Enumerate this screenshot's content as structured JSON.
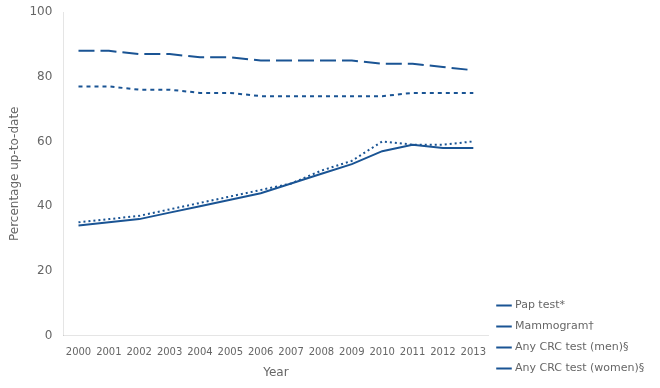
{
  "chart_data": {
    "type": "line",
    "x": [
      2000,
      2001,
      2002,
      2003,
      2004,
      2005,
      2006,
      2007,
      2008,
      2009,
      2010,
      2011,
      2012,
      2013
    ],
    "series": [
      {
        "name": "Pap test*",
        "color": "#1a5494",
        "line_style": "dashed",
        "values": [
          88,
          88,
          87,
          87,
          86,
          86,
          85,
          85,
          85,
          85,
          84,
          84,
          83,
          82
        ]
      },
      {
        "name": "Mammogram†",
        "color": "#1a5494",
        "line_style": "short-dashed",
        "values": [
          77,
          77,
          76,
          76,
          75,
          75,
          74,
          74,
          74,
          74,
          74,
          75,
          75,
          75
        ]
      },
      {
        "name": "Any CRC test (men)§",
        "color": "#1a5494",
        "line_style": "solid",
        "values": [
          34,
          35,
          36,
          38,
          40,
          42,
          44,
          47,
          50,
          53,
          57,
          59,
          58,
          58
        ]
      },
      {
        "name": "Any CRC test (women)§",
        "color": "#1a5494",
        "line_style": "dotted",
        "values": [
          35,
          36,
          37,
          39,
          41,
          43,
          45,
          47,
          51,
          54,
          60,
          59,
          59,
          60
        ]
      }
    ],
    "xlabel": "Year",
    "ylabel": "Percentage up-to-date",
    "xlim": [
      1999.5,
      2013.5
    ],
    "xticks": [
      2000,
      2001,
      2002,
      2003,
      2004,
      2005,
      2006,
      2007,
      2008,
      2009,
      2010,
      2011,
      2012,
      2013
    ],
    "ylim": [
      0,
      100
    ],
    "yticks": [
      0,
      20,
      40,
      60,
      80,
      100
    ],
    "grid": false,
    "legend": "lower right"
  }
}
